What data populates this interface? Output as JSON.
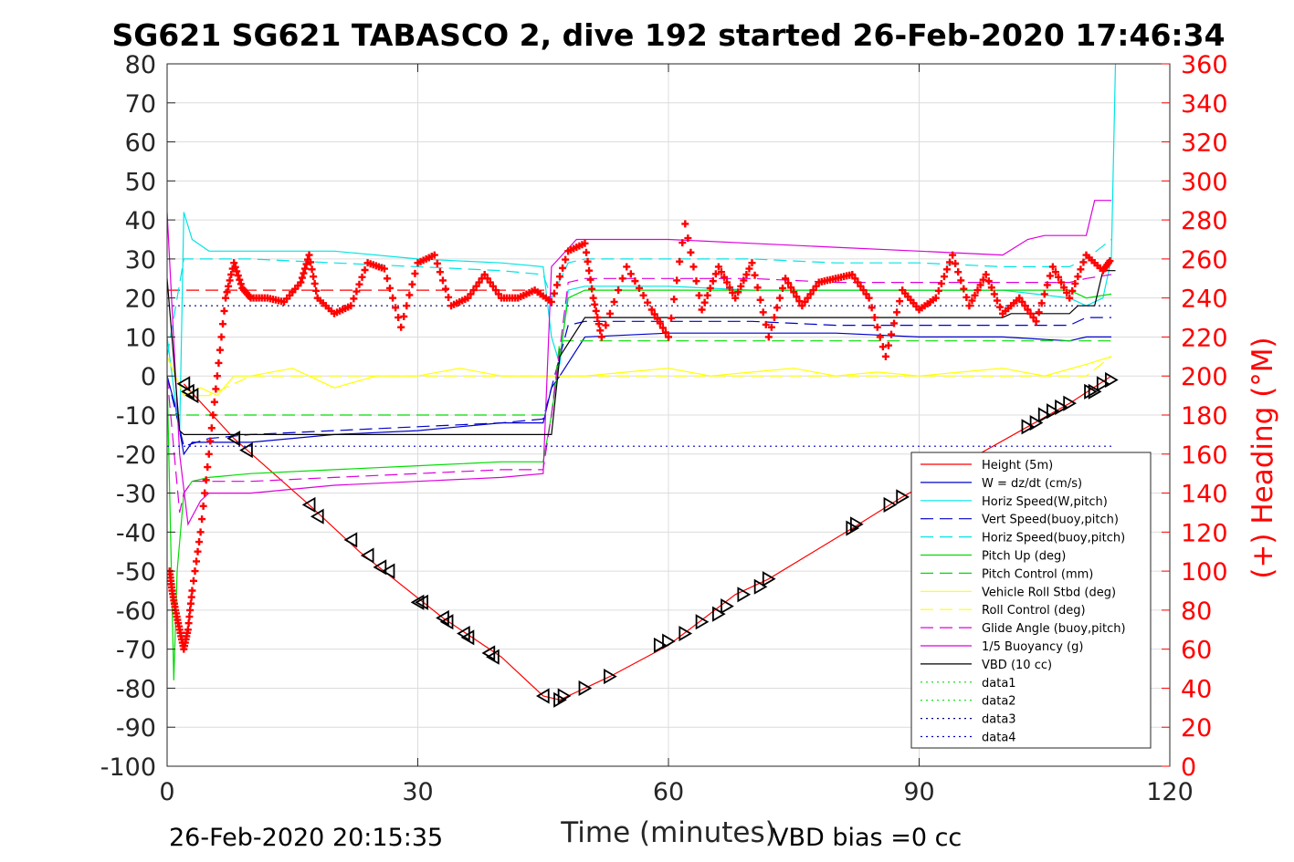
{
  "chart_data": {
    "type": "line",
    "title": "SG621 SG621 TABASCO 2, dive 192 started 26-Feb-2020 17:46:34",
    "xlabel": "Time (minutes)",
    "ylabel": "",
    "ylabel_right": "(+) Heading (°M)",
    "xlim": [
      0,
      120
    ],
    "ylim": [
      -100,
      80
    ],
    "ylim_right": [
      0,
      360
    ],
    "x_ticks": [
      "0",
      "30",
      "60",
      "90",
      "120"
    ],
    "y_ticks": [
      "80",
      "70",
      "60",
      "50",
      "40",
      "30",
      "20",
      "10",
      "0",
      "-10",
      "-20",
      "-30",
      "-40",
      "-50",
      "-60",
      "-70",
      "-80",
      "-90",
      "-100"
    ],
    "y_ticks_right": [
      "360",
      "340",
      "320",
      "300",
      "280",
      "260",
      "240",
      "220",
      "200",
      "180",
      "160",
      "140",
      "120",
      "100",
      "80",
      "60",
      "40",
      "20",
      "0"
    ],
    "grid": true,
    "legend_position": "bottom-right",
    "footer_left": "26-Feb-2020 20:15:35",
    "footer_right": "VBD bias =0 cc",
    "colors": {
      "height": "#ff0000",
      "w": "#0000cc",
      "horiz_speed": "#00e5e5",
      "pitch_up": "#00dd00",
      "roll": "#ffff00",
      "glide": "#dd00dd",
      "buoyancy": "#dd00dd",
      "vbd": "#000000",
      "heading": "#ff0000"
    },
    "series": [
      {
        "name": "Height (5m)",
        "style": "solid",
        "color": "#ff0000",
        "x": [
          2,
          8,
          17,
          23,
          33,
          40,
          45,
          47,
          50,
          53,
          60,
          68,
          72,
          82,
          88,
          103,
          108,
          113
        ],
        "y": [
          -2,
          -16,
          -33,
          -45,
          -62,
          -72,
          -82,
          -83,
          -80,
          -77,
          -69,
          -56,
          -52,
          -39,
          -31,
          -13,
          -7,
          0
        ]
      },
      {
        "name": "W = dz/dt (cm/s)",
        "style": "solid",
        "color": "#0000cc",
        "x": [
          0,
          1,
          2,
          3,
          10,
          20,
          30,
          40,
          45,
          46,
          47,
          50,
          60,
          70,
          80,
          90,
          100,
          108,
          110,
          113
        ],
        "y": [
          0,
          -8,
          -20,
          -17,
          -17,
          -15,
          -14,
          -12,
          -12,
          -3,
          0,
          10,
          11,
          11,
          11,
          10,
          10,
          9,
          10,
          10
        ]
      },
      {
        "name": "Horiz Speed(W,pitch)",
        "style": "solid",
        "color": "#00e5e5",
        "x": [
          0,
          1.5,
          2,
          3,
          5,
          10,
          20,
          30,
          40,
          45,
          46,
          47,
          48,
          50,
          60,
          70,
          80,
          90,
          100,
          108,
          110,
          112,
          113,
          113.5
        ],
        "y": [
          10,
          -15,
          42,
          35,
          32,
          32,
          32,
          30,
          29,
          28,
          10,
          3,
          22,
          23,
          23,
          22,
          22,
          22,
          22,
          20,
          18,
          20,
          30,
          80
        ]
      },
      {
        "name": "Vert Speed(buoy,pitch)",
        "style": "dashed",
        "color": "#0000cc",
        "x": [
          0,
          2,
          5,
          10,
          20,
          30,
          40,
          45,
          46,
          48,
          50,
          60,
          70,
          80,
          90,
          100,
          108,
          110,
          113
        ],
        "y": [
          0,
          -18,
          -16,
          -15,
          -14,
          -13,
          -12,
          -11,
          -3,
          13,
          14,
          14,
          14,
          13,
          13,
          13,
          13,
          15,
          15
        ]
      },
      {
        "name": "Horiz Speed(buoy,pitch)",
        "style": "dashed",
        "color": "#00e5e5",
        "x": [
          0,
          2,
          5,
          10,
          20,
          30,
          40,
          45,
          46,
          48,
          50,
          60,
          70,
          80,
          90,
          100,
          108,
          110,
          113
        ],
        "y": [
          5,
          30,
          30,
          30,
          29,
          28,
          27,
          26,
          20,
          29,
          30,
          30,
          30,
          29,
          29,
          28,
          28,
          30,
          35
        ]
      },
      {
        "name": "Pitch Up (deg)",
        "style": "solid",
        "color": "#00dd00",
        "x": [
          0,
          0.8,
          1.2,
          2,
          3,
          5,
          10,
          20,
          30,
          40,
          45,
          46,
          48,
          50,
          60,
          70,
          80,
          90,
          100,
          108,
          110,
          113
        ],
        "y": [
          0,
          -78,
          -50,
          -30,
          -27,
          -26,
          -25,
          -24,
          -23,
          -22,
          -22,
          -10,
          20,
          22,
          22,
          22,
          22,
          22,
          22,
          22,
          20,
          21
        ]
      },
      {
        "name": "Pitch Control (mm)",
        "style": "dashed",
        "color": "#00dd00",
        "x": [
          0,
          2,
          46,
          47,
          113
        ],
        "y": [
          -10,
          -10,
          -10,
          9,
          9
        ]
      },
      {
        "name": "Vehicle Roll Stbd (deg)",
        "style": "solid",
        "color": "#ffff00",
        "x": [
          0,
          2,
          4,
          6,
          8,
          10,
          15,
          20,
          25,
          30,
          35,
          40,
          45,
          50,
          55,
          60,
          65,
          70,
          75,
          80,
          85,
          90,
          95,
          100,
          105,
          110,
          113
        ],
        "y": [
          5,
          -5,
          -3,
          -5,
          0,
          0,
          2,
          -3,
          0,
          0,
          2,
          0,
          0,
          0,
          1,
          2,
          0,
          1,
          2,
          0,
          1,
          0,
          1,
          2,
          0,
          3,
          5
        ]
      },
      {
        "name": "Roll Control (deg)",
        "style": "dashed",
        "color": "#ffff00",
        "x": [
          0,
          2,
          5,
          10,
          20,
          30,
          40,
          46,
          50,
          60,
          70,
          80,
          90,
          100,
          110,
          113
        ],
        "y": [
          5,
          -5,
          -5,
          0,
          0,
          0,
          0,
          0,
          0,
          0,
          0,
          0,
          0,
          0,
          0,
          5
        ]
      },
      {
        "name": "Glide Angle (buoy,pitch)",
        "style": "dashed",
        "color": "#dd00dd",
        "x": [
          0,
          1.5,
          2,
          3,
          5,
          10,
          20,
          30,
          40,
          45,
          46,
          48,
          50,
          60,
          70,
          80,
          90,
          100,
          108,
          110,
          113
        ],
        "y": [
          0,
          -35,
          -30,
          -27,
          -27,
          -27,
          -26,
          -25,
          -24,
          -24,
          -10,
          24,
          25,
          25,
          25,
          24,
          24,
          24,
          24,
          25,
          26
        ]
      },
      {
        "name": "1/5 Buoyancy (g)",
        "style": "solid",
        "color": "#dd00dd",
        "x": [
          0,
          1.5,
          2.5,
          4,
          5,
          10,
          20,
          30,
          40,
          45,
          46,
          49,
          50,
          60,
          70,
          80,
          90,
          100,
          103,
          105,
          110,
          111,
          113
        ],
        "y": [
          42,
          -20,
          -38,
          -32,
          -30,
          -30,
          -28,
          -27,
          -26,
          -25,
          28,
          35,
          35,
          35,
          34,
          33,
          32,
          31,
          35,
          36,
          36,
          45,
          45
        ]
      },
      {
        "name": "VBD (10 cc)",
        "style": "solid",
        "color": "#000000",
        "x": [
          0,
          1.5,
          2,
          46,
          47,
          50,
          100,
          101,
          108,
          109,
          111,
          112,
          113.5
        ],
        "y": [
          25,
          -14,
          -15,
          -15,
          5,
          15,
          15,
          16,
          16,
          18,
          18,
          27,
          27
        ]
      },
      {
        "name": "data1",
        "style": "dotted",
        "color": "#00dd00",
        "x": [],
        "y": []
      },
      {
        "name": "data2",
        "style": "dotted",
        "color": "#00dd00",
        "x": [],
        "y": []
      },
      {
        "name": "data3",
        "style": "dotted",
        "color": "#000080",
        "x": [
          0,
          113
        ],
        "y": [
          18,
          18
        ]
      },
      {
        "name": "data4",
        "style": "dotted",
        "color": "#0000cc",
        "x": [
          0,
          113
        ],
        "y": [
          -18,
          -18
        ]
      }
    ],
    "reference_lines": [
      {
        "style": "dashed",
        "color": "#ff0000",
        "x": [
          0,
          46
        ],
        "y": [
          22,
          22
        ]
      }
    ],
    "heading": {
      "name": "(+) Heading (°M)",
      "axis": "right",
      "marker": "+",
      "color": "#ff0000",
      "x": [
        0.3,
        0.6,
        1,
        1.5,
        2,
        2.5,
        3,
        4,
        5,
        6,
        7,
        8,
        9,
        10,
        12,
        14,
        16,
        17,
        18,
        20,
        22,
        24,
        26,
        28,
        30,
        32,
        34,
        36,
        38,
        40,
        42,
        44,
        46,
        48,
        50,
        51,
        52,
        55,
        58,
        60,
        62,
        64,
        66,
        68,
        70,
        72,
        74,
        76,
        78,
        80,
        82,
        84,
        86,
        88,
        90,
        92,
        94,
        96,
        98,
        100,
        102,
        104,
        106,
        108,
        110,
        112,
        113
      ],
      "y": [
        100,
        90,
        80,
        70,
        60,
        70,
        90,
        120,
        160,
        200,
        240,
        258,
        245,
        240,
        240,
        238,
        248,
        262,
        240,
        232,
        236,
        258,
        255,
        225,
        258,
        262,
        236,
        240,
        252,
        240,
        240,
        244,
        238,
        264,
        268,
        240,
        220,
        256,
        234,
        220,
        278,
        234,
        256,
        240,
        258,
        220,
        250,
        236,
        248,
        250,
        252,
        240,
        210,
        244,
        234,
        240,
        262,
        236,
        252,
        232,
        240,
        228,
        256,
        240,
        262,
        254,
        260
      ]
    },
    "descent_ascent_markers": {
      "x": [
        2,
        2.5,
        3,
        8,
        9.5,
        17,
        18,
        22,
        24,
        25.5,
        26.5,
        30,
        30.5,
        33,
        33.5,
        35.5,
        36,
        38.5,
        39,
        45,
        47,
        47.5,
        50,
        53,
        59,
        60,
        62,
        64,
        66,
        67,
        69,
        71,
        72,
        82,
        82.5,
        86.5,
        88,
        103,
        104,
        105,
        106,
        107,
        108,
        110.5,
        111,
        112,
        113
      ],
      "y": [
        -2,
        -4,
        -5,
        -16,
        -19,
        -33,
        -36,
        -42,
        -46,
        -49,
        -50,
        -58,
        -58,
        -62,
        -63,
        -66,
        -67,
        -71,
        -72,
        -82,
        -83,
        -82,
        -80,
        -77,
        -69,
        -68,
        -66,
        -63,
        -61,
        -59,
        -56,
        -54,
        -52,
        -39,
        -38,
        -33,
        -31,
        -13,
        -12,
        -10,
        -9,
        -8,
        -7,
        -4,
        -4,
        -2,
        -1
      ]
    }
  }
}
